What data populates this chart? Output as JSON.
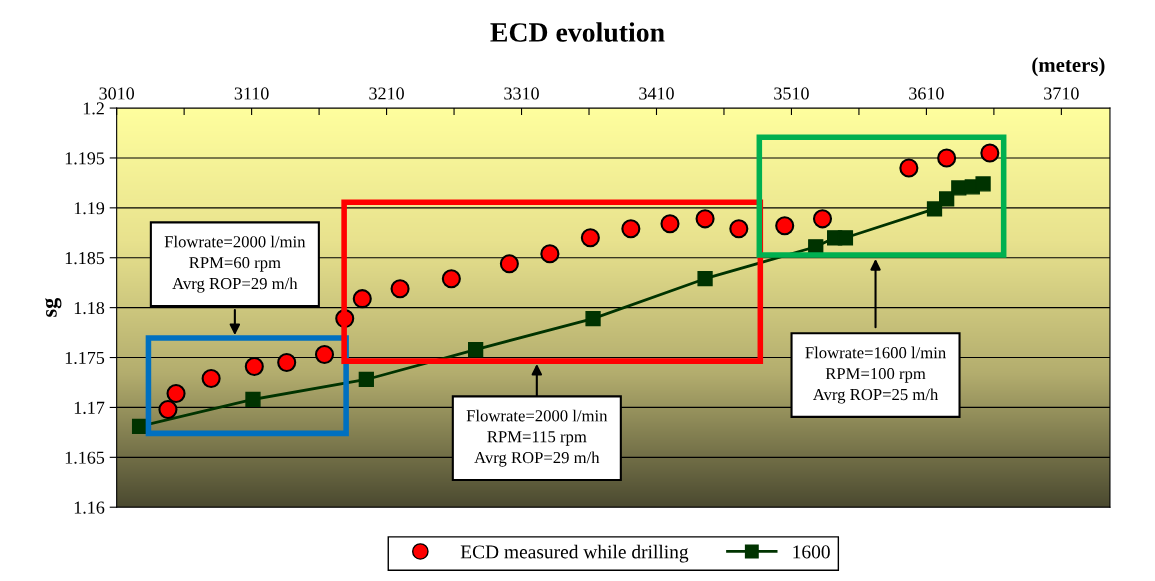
{
  "chart_data": {
    "type": "scatter",
    "title": "ECD evolution",
    "xlabel": "(meters)",
    "ylabel": "sg",
    "xlim": [
      3010,
      3746
    ],
    "xticks": [
      3010,
      {
        "value": 3060,
        "label": null
      },
      3110,
      {
        "value": 3160,
        "label": null
      },
      3210,
      {
        "value": 3260,
        "label": null
      },
      3310,
      {
        "value": 3360,
        "label": null
      },
      3410,
      {
        "value": 3460,
        "label": null
      },
      3510,
      {
        "value": 3560,
        "label": null
      },
      3610,
      {
        "value": 3660,
        "label": null
      },
      3710
    ],
    "ylim": [
      1.16,
      1.2
    ],
    "yticks": [
      1.16,
      1.165,
      1.17,
      1.175,
      1.18,
      1.185,
      1.19,
      1.195,
      1.2
    ],
    "grid": "y",
    "legend": "bottom",
    "series": [
      {
        "name": "ECD measured while drilling",
        "marker": "circle",
        "color": "#ff0000",
        "x": [
          3048,
          3054,
          3080,
          3112,
          3136,
          3164,
          3179,
          3192,
          3220,
          3258,
          3301,
          3331,
          3361,
          3391,
          3420,
          3446,
          3471,
          3505,
          3533,
          3597,
          3625,
          3657
        ],
        "values": [
          1.1698,
          1.1714,
          1.1729,
          1.1741,
          1.1745,
          1.1753,
          1.1789,
          1.1809,
          1.1819,
          1.1829,
          1.1844,
          1.1854,
          1.187,
          1.1879,
          1.1884,
          1.1889,
          1.1879,
          1.1882,
          1.1889,
          1.194,
          1.195,
          1.1955
        ]
      },
      {
        "name": "1600",
        "type": "line",
        "marker": "square",
        "line_style": "solid",
        "color": "#003300",
        "x": [
          3027,
          3111,
          3195,
          3276,
          3363,
          3446,
          3528,
          3542,
          3550,
          3616,
          3625,
          3634,
          3644,
          3652
        ],
        "values": [
          1.1681,
          1.1708,
          1.1728,
          1.1758,
          1.1789,
          1.1829,
          1.1861,
          1.187,
          1.187,
          1.1899,
          1.1909,
          1.192,
          1.1921,
          1.1924
        ]
      }
    ],
    "annotations": [
      "Flowrate=2000 l/min\nRPM=60 rpm\nAvrg ROP=29 m/h",
      "Flowrate=2000 l/min\nRPM=115 rpm\nAvrg ROP=29 m/h",
      "Flowrate=1600 l/min\nRPM=100 rpm\nAvrg ROP=25 m/h"
    ]
  }
}
